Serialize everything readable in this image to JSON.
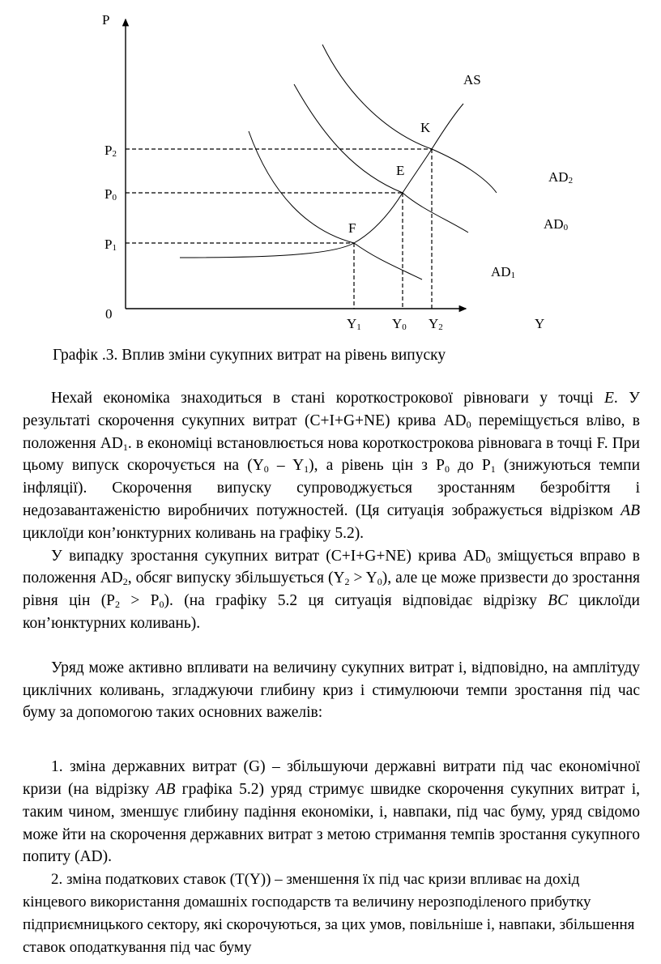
{
  "diagram": {
    "axis_y": "P",
    "axis_x": "Y",
    "origin": "0",
    "price_levels": [
      {
        "base": "P",
        "sub": "2"
      },
      {
        "base": "P",
        "sub": "0"
      },
      {
        "base": "P",
        "sub": "1"
      }
    ],
    "output_levels": [
      {
        "base": "Y",
        "sub": "1"
      },
      {
        "base": "Y",
        "sub": "0"
      },
      {
        "base": "Y",
        "sub": "2"
      }
    ],
    "curves": {
      "as": "AS",
      "ad2": {
        "base": "AD",
        "sub": "2"
      },
      "ad0": {
        "base": "AD",
        "sub": "0"
      },
      "ad1": {
        "base": "AD",
        "sub": "1"
      }
    },
    "points": {
      "k": "K",
      "e": "E",
      "f": "F"
    }
  },
  "caption": "Графік .3. Вплив зміни сукупних витрат на рівень випуску",
  "paragraphs": [
    {
      "cls": "",
      "runs": [
        "Нехай економіка знаходиться в стані короткострокової рівноваги у точці ",
        {
          "i": "E"
        },
        ". У результаті скорочення сукупних витрат (C+I+G+NE) крива AD",
        {
          "sub": "0"
        },
        " переміщується вліво, в положення AD",
        {
          "sub": "1"
        },
        ". в економіці встановлюється нова короткострокова рівновага в точці F. При цьому випуск скорочується на (Y",
        {
          "sub": "0"
        },
        " – Y",
        {
          "sub": "1"
        },
        "), а рівень цін з P",
        {
          "sub": "0"
        },
        " до P",
        {
          "sub": "1"
        },
        " (знижуються темпи інфляції). Скорочення випуску супроводжується зростанням безробіття і недозавантаженістю виробничих потужностей. (Ця ситуація зображується відрізком ",
        {
          "i": "AB"
        },
        " циклоїди кон’юнктурних коливань на графіку 5.2)."
      ]
    },
    {
      "cls": "",
      "runs": [
        "У випадку зростання сукупних витрат (C+I+G+NE) крива AD",
        {
          "sub": "0"
        },
        " зміщується вправо в положення AD",
        {
          "sub": "2"
        },
        ", обсяг випуску збільшується (Y",
        {
          "sub": "2"
        },
        " > Y",
        {
          "sub": "0"
        },
        "), але це може призвести до зростання рівня цін (P",
        {
          "sub": "2"
        },
        " > P",
        {
          "sub": "0"
        },
        "). (на графіку 5.2 ця ситуація відповідає відрізку ",
        {
          "i": "BC"
        },
        " циклоїди кон’юнктурних коливань)."
      ]
    },
    {
      "cls": "gap",
      "runs": [
        "Уряд може активно впливати на величину сукупних витрат і, відповідно, на амплітуду циклічних коливань, згладжуючи глибину криз і стимулюючи темпи зростання під час буму за допомогою таких основних важелів:"
      ]
    },
    {
      "cls": "gap2",
      "runs": [
        "1. зміна державних витрат (G) – збільшуючи державні витрати під час економічної кризи (на відрізку ",
        {
          "i": "AB"
        },
        " графіка 5.2) уряд стримує швидке скорочення сукупних витрат і, таким чином, зменшує глибину падіння економіки, і, навпаки, під час буму, уряд свідомо може йти на скорочення державних витрат з метою стримання темпів зростання сукупного попиту (AD)."
      ]
    },
    {
      "cls": "ragged",
      "runs": [
        "2. зміна податкових ставок (T(Y)) – зменшення їх під час кризи впливає на дохід кінцевого використання домашніх господарств та величину нерозподіленого прибутку підприємницького сектору, які скорочуються, за цих умов, повільніше і, навпаки, збільшення ставок оподаткування під час буму"
      ]
    }
  ]
}
